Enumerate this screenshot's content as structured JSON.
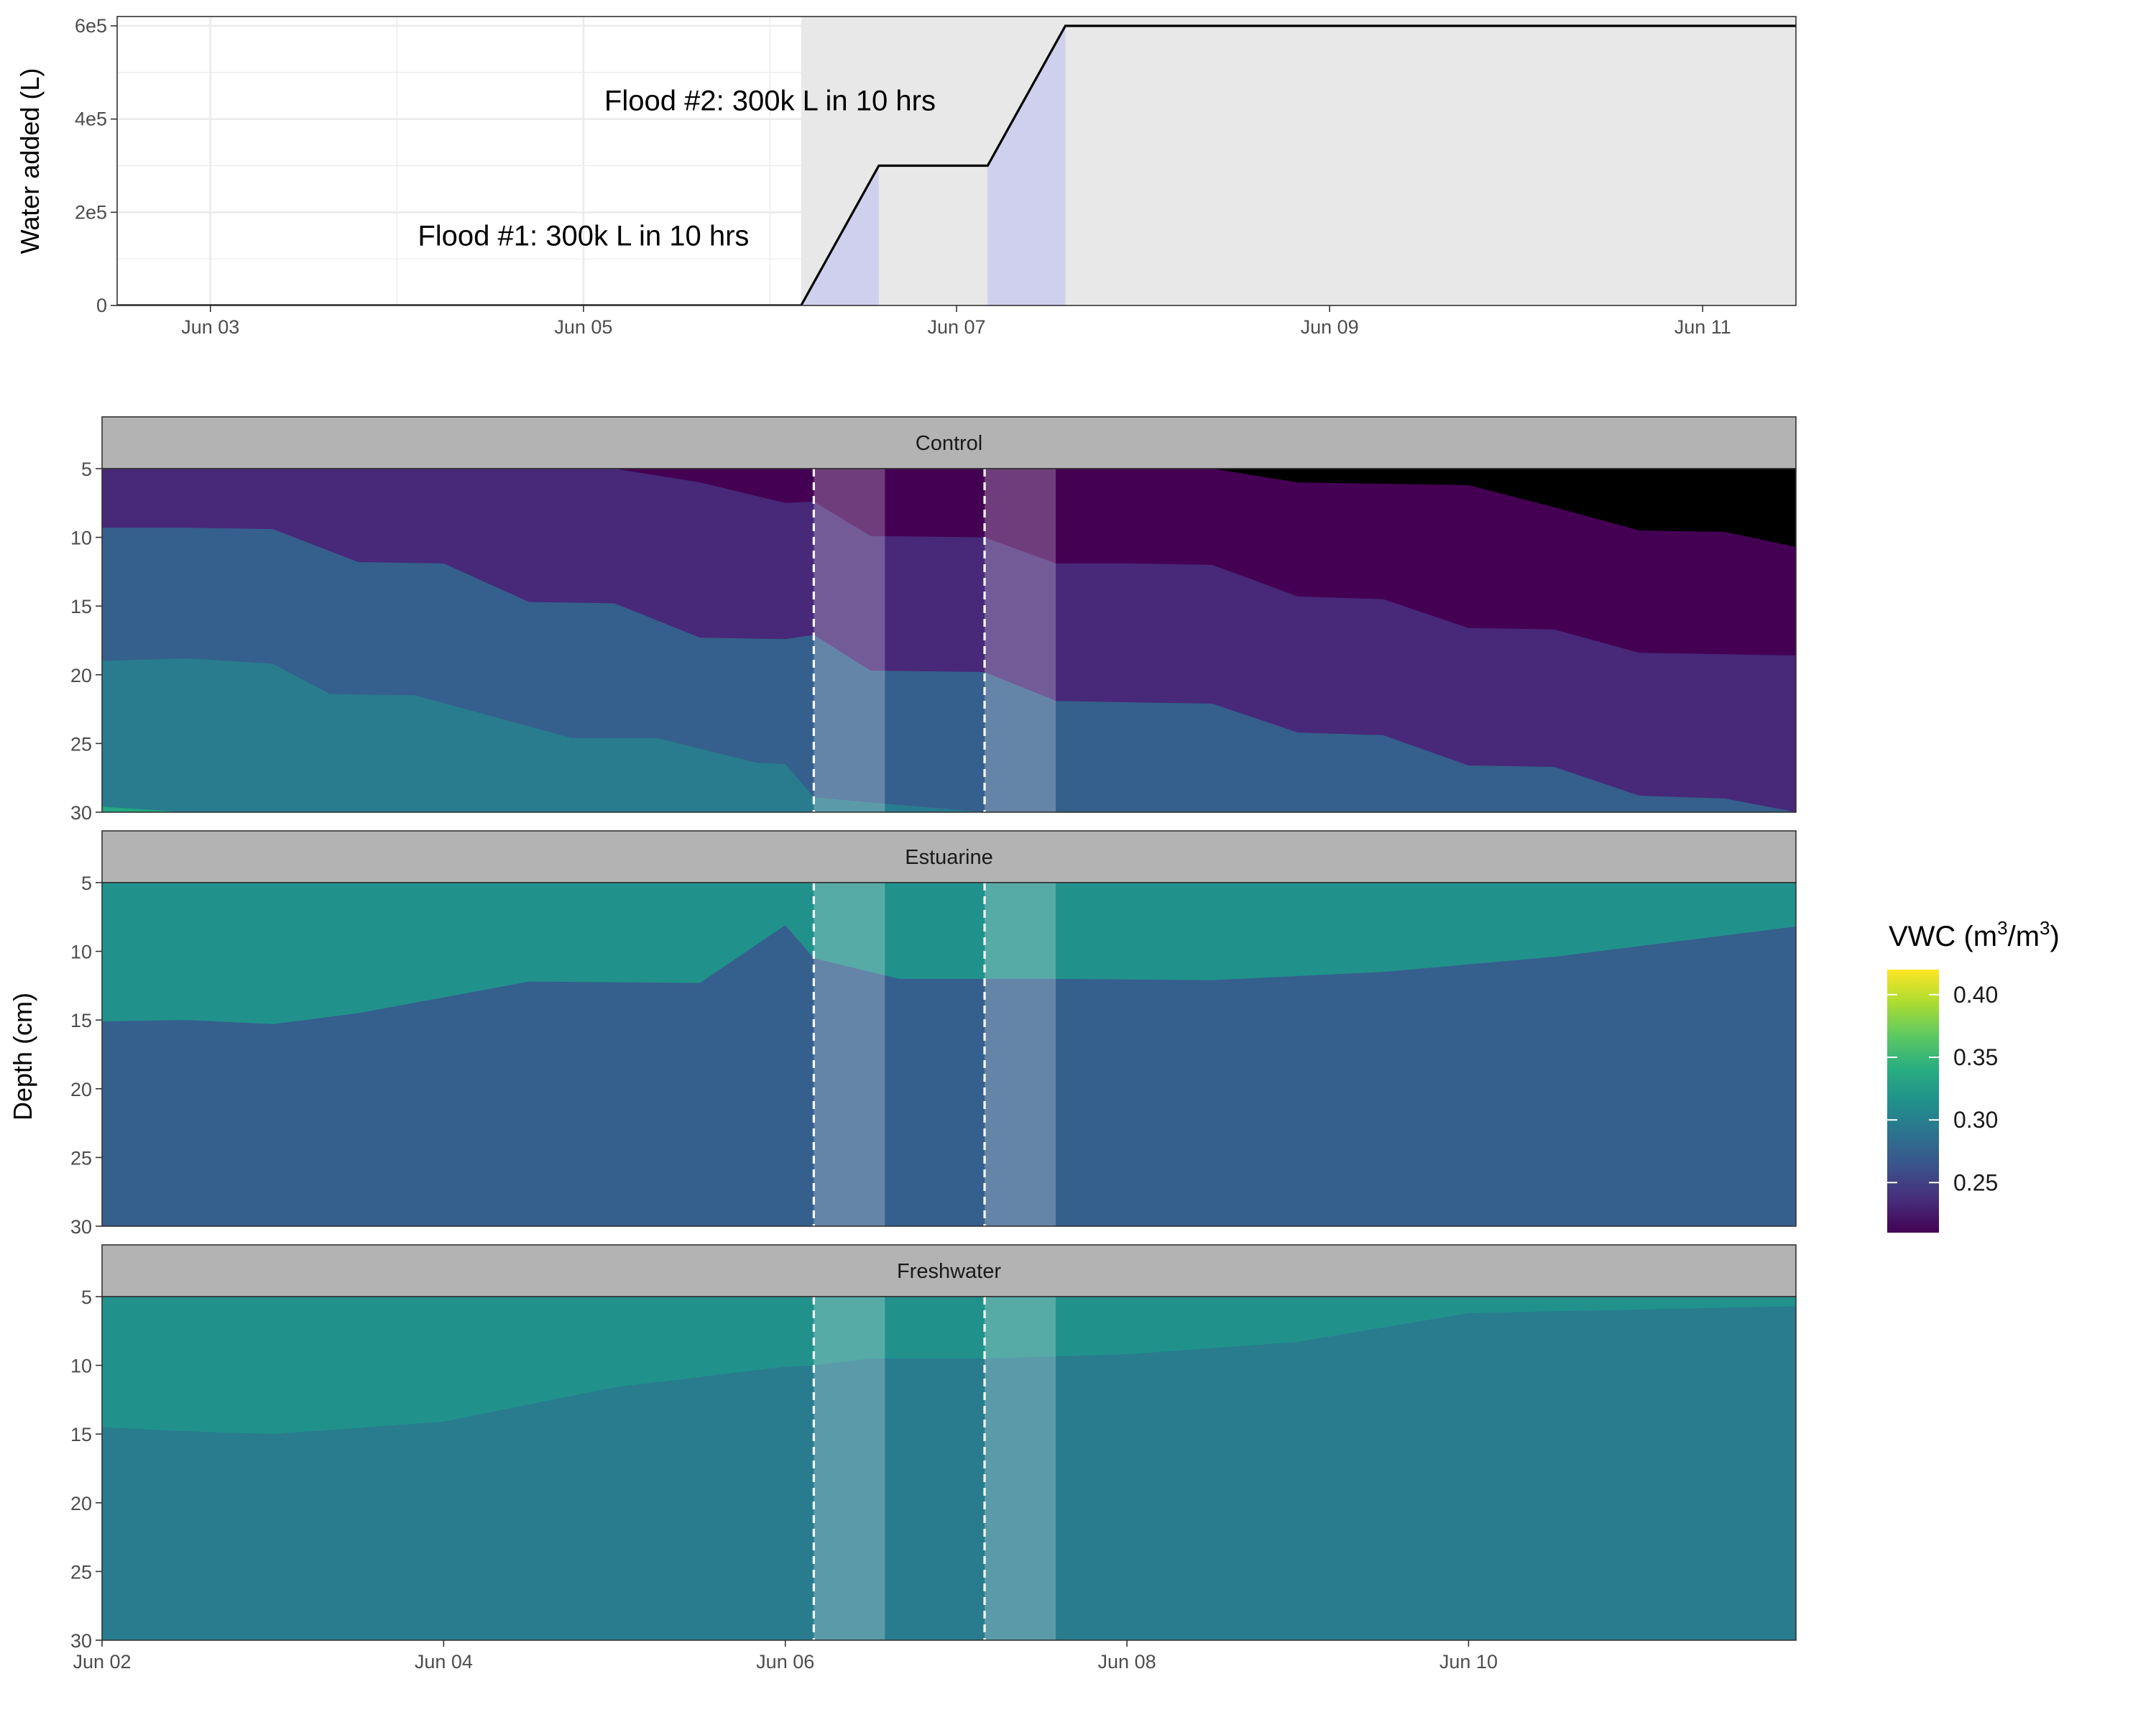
{
  "chart_data": [
    {
      "type": "area",
      "ylabel": "Water added (L)",
      "x_range": [
        "Jun 02 12:00",
        "Jun 11 12:00"
      ],
      "ylim": [
        0,
        620000
      ],
      "x_ticks": [
        "Jun 03",
        "Jun 05",
        "Jun 07",
        "Jun 09",
        "Jun 11"
      ],
      "y_ticks": [
        "0",
        "2e5",
        "4e5",
        "6e5"
      ],
      "series": [
        {
          "points": [
            {
              "x": "Jun 02 12:00",
              "y": 0
            },
            {
              "x": "Jun 06 04:00",
              "y": 0
            },
            {
              "x": "Jun 06 14:00",
              "y": 300000
            },
            {
              "x": "Jun 07 04:00",
              "y": 300000
            },
            {
              "x": "Jun 07 14:00",
              "y": 600000
            },
            {
              "x": "Jun 11 12:00",
              "y": 600000
            }
          ]
        }
      ],
      "flood_windows": [
        {
          "start": "Jun 06 04:00",
          "end": "Jun 06 14:00"
        },
        {
          "start": "Jun 07 04:00",
          "end": "Jun 07 14:00"
        }
      ],
      "post_flood_shading_start": "Jun 06 04:00",
      "annotations": [
        {
          "text": "Flood #1: 300k L in 10 hrs",
          "x": "Jun 05 00:00",
          "y": 150000
        },
        {
          "text": "Flood #2: 300k L in 10 hrs",
          "x": "Jun 06 00:00",
          "y": 440000
        }
      ],
      "grid": true
    },
    {
      "type": "heatmap",
      "facets": [
        "Control",
        "Estuarine",
        "Freshwater"
      ],
      "xlabel": "",
      "ylabel": "Depth (cm)",
      "x_range": [
        "Jun 02 00:00",
        "Jun 11 22:00"
      ],
      "x_ticks": [
        "Jun 02",
        "Jun 04",
        "Jun 06",
        "Jun 08",
        "Jun 10"
      ],
      "y_ticks": [
        "5",
        "10",
        "15",
        "20",
        "25",
        "30"
      ],
      "depth_range": [
        5,
        30
      ],
      "y_reversed": true,
      "flood_lines": [
        "Jun 06 04:00",
        "Jun 07 04:00"
      ],
      "legend": {
        "title": "VWC",
        "unit": "m",
        "exponent": "3",
        "position": "right",
        "range": [
          0.21,
          0.42
        ],
        "ticks": [
          "0.40",
          "0.35",
          "0.30",
          "0.25"
        ],
        "colors": [
          "#440154",
          "#472d7b",
          "#3b528b",
          "#2c728e",
          "#21918c",
          "#28ae80",
          "#5ec962",
          "#addc30",
          "#fde725"
        ]
      },
      "series": [
        {
          "name": "Control",
          "band_colors": [
            "#23a983",
            "#287c8e",
            "#355f8d",
            "#482878",
            "#440154"
          ],
          "boundaries": [
            {
              "x": [
                "Jun 02 00:00",
                "Jun 02 12:00",
                "Jun 03 12:00",
                "Jun 04 00:00",
                "Jun 05 00:00",
                "Jun 06 00:00",
                "Jun 06 04:00",
                "Jun 06 12:00",
                "Jun 07 04:00",
                "Jun 07 14:00",
                "Jun 08 12:00",
                "Jun 09 12:00",
                "Jun 10 12:00",
                "Jun 11 22:00"
              ],
              "depth": [
                29.6,
                30,
                30,
                30,
                30,
                30,
                30,
                30,
                30,
                30,
                30,
                30,
                30,
                30
              ]
            },
            {
              "x": [
                "Jun 02 00:00",
                "Jun 02 12:00",
                "Jun 03 00:00",
                "Jun 03 08:00",
                "Jun 03 20:00",
                "Jun 04 18:00",
                "Jun 05 06:00",
                "Jun 05 20:00",
                "Jun 06 00:00",
                "Jun 06 04:00",
                "Jun 06 12:00",
                "Jun 07 04:00",
                "Jun 07 14:00",
                "Jun 08 00:00",
                "Jun 09 00:00",
                "Jun 09 12:00",
                "Jun 10 06:00",
                "Jun 10 18:00",
                "Jun 11 06:00",
                "Jun 11 22:00"
              ],
              "depth": [
                19,
                18.8,
                19.2,
                21.4,
                21.5,
                24.6,
                24.6,
                26.4,
                26.5,
                28.9,
                29.3,
                30,
                30,
                30,
                30,
                30,
                30,
                30,
                30,
                30
              ]
            },
            {
              "x": [
                "Jun 02 00:00",
                "Jun 02 12:00",
                "Jun 03 00:00",
                "Jun 03 12:00",
                "Jun 04 00:00",
                "Jun 04 12:00",
                "Jun 05 00:00",
                "Jun 05 12:00",
                "Jun 06 00:00",
                "Jun 06 04:00",
                "Jun 06 12:00",
                "Jun 07 04:00",
                "Jun 07 14:00",
                "Jun 08 00:00",
                "Jun 08 12:00",
                "Jun 09 00:00",
                "Jun 09 12:00",
                "Jun 10 00:00",
                "Jun 10 12:00",
                "Jun 11 00:00",
                "Jun 11 12:00",
                "Jun 11 22:00"
              ],
              "depth": [
                9.3,
                9.3,
                9.4,
                11.8,
                11.9,
                14.7,
                14.8,
                17.3,
                17.4,
                17.1,
                19.7,
                19.8,
                21.9,
                22,
                22.1,
                24.2,
                24.4,
                26.6,
                26.7,
                28.8,
                29,
                30
              ]
            },
            {
              "x": [
                "Jun 02 00:00",
                "Jun 03 12:00",
                "Jun 05 00:00",
                "Jun 05 12:00",
                "Jun 06 00:00",
                "Jun 06 04:00",
                "Jun 06 12:00",
                "Jun 07 04:00",
                "Jun 07 14:00",
                "Jun 08 00:00",
                "Jun 08 12:00",
                "Jun 09 00:00",
                "Jun 09 12:00",
                "Jun 10 00:00",
                "Jun 10 12:00",
                "Jun 11 00:00",
                "Jun 11 22:00"
              ],
              "depth": [
                5,
                5,
                5,
                6,
                7.5,
                7.4,
                9.9,
                10,
                11.9,
                11.9,
                12,
                14.3,
                14.5,
                16.6,
                16.7,
                18.4,
                18.6
              ]
            },
            {
              "x": [
                "Jun 02 00:00",
                "Jun 08 12:00",
                "Jun 09 00:00",
                "Jun 09 12:00",
                "Jun 10 00:00",
                "Jun 10 12:00",
                "Jun 11 00:00",
                "Jun 11 12:00",
                "Jun 11 22:00"
              ],
              "depth": [
                5,
                5,
                6,
                6.1,
                6.2,
                7.8,
                9.5,
                9.6,
                10.7
              ]
            }
          ]
        },
        {
          "name": "Estuarine",
          "band_colors": [
            "#355f8d",
            "#287c8e",
            "#21918c",
            "#22a884",
            "#44bf70",
            "#7ad151",
            "#d3e21b",
            "#fde725"
          ],
          "boundaries": [
            {
              "x": [
                "Jun 02 00:00",
                "Jun 02 06:00",
                "Jun 03 00:00",
                "Jun 03 12:00",
                "Jun 03 22:00",
                "Jun 05 06:00",
                "Jun 05 12:00",
                "Jun 06 00:00",
                "Jun 06 04:00",
                "Jun 06 06:00",
                "Jun 06 08:00",
                "Jun 06 16:00",
                "Jun 07 04:00",
                "Jun 07 06:00",
                "Jun 08 00:00",
                "Jun 08 12:00",
                "Jun 09 12:00",
                "Jun 09 18:00",
                "Jun 09 20:00",
                "Jun 11 22:00"
              ],
              "depth": [
                5.5,
                8,
                7.5,
                5.2,
                5,
                5,
                5,
                5,
                5,
                5,
                5,
                5,
                5,
                5,
                5,
                5,
                5,
                5,
                5,
                5
              ]
            },
            {
              "x": [
                "Jun 02 00:00",
                "Jun 02 12:00",
                "Jun 03 00:00",
                "Jun 03 12:00",
                "Jun 04 12:00",
                "Jun 05 12:00",
                "Jun 06 00:00",
                "Jun 06 04:00",
                "Jun 06 16:00",
                "Jun 07 04:00",
                "Jun 07 14:00",
                "Jun 08 12:00",
                "Jun 09 12:00",
                "Jun 10 12:00",
                "Jun 11 22:00"
              ],
              "depth": [
                15.1,
                15,
                15.3,
                14.5,
                12.2,
                12.3,
                8.1,
                10.5,
                12,
                12,
                12,
                12.1,
                11.5,
                10.4,
                8.2
              ]
            }
          ]
        },
        {
          "name": "Freshwater",
          "band_colors": [
            "#287c8e",
            "#21918c",
            "#22a884",
            "#44bf70",
            "#7ad151",
            "#addc30",
            "#fde725"
          ],
          "boundaries": [
            {
              "x": [
                "Jun 02 00:00",
                "Jun 02 12:00",
                "Jun 03 00:00",
                "Jun 04 00:00",
                "Jun 05 00:00",
                "Jun 06 00:00",
                "Jun 06 04:00",
                "Jun 06 12:00",
                "Jun 07 04:00",
                "Jun 08 00:00",
                "Jun 09 00:00",
                "Jun 10 00:00",
                "Jun 11 22:00"
              ],
              "depth": [
                14.5,
                14.8,
                15,
                14.1,
                11.6,
                10.1,
                10,
                9.5,
                9.5,
                9.2,
                8.3,
                6.2,
                5.7
              ]
            }
          ]
        }
      ]
    }
  ]
}
